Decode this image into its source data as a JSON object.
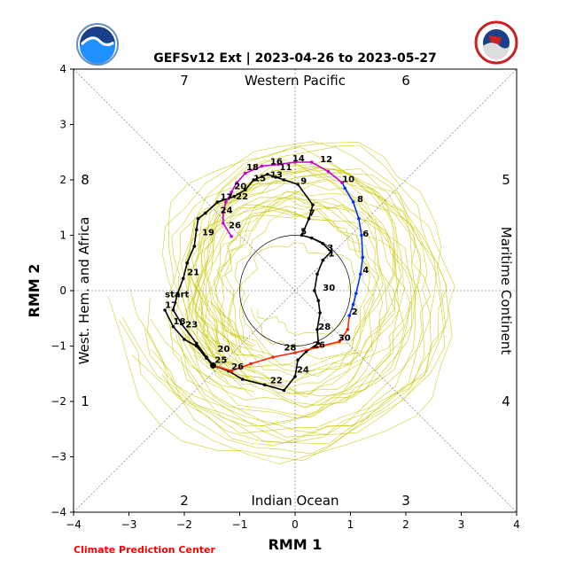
{
  "chart_data": {
    "type": "phase-diagram",
    "title": "GEFSv12 Ext | 2023-04-26 to 2023-05-27",
    "xlabel": "RMM 1",
    "ylabel": "RMM 2",
    "xlim": [
      -4,
      4
    ],
    "ylim": [
      -4,
      4
    ],
    "xticks": [
      -4,
      -3,
      -2,
      -1,
      0,
      1,
      2,
      3,
      4
    ],
    "yticks": [
      -4,
      -3,
      -2,
      -1,
      0,
      1,
      2,
      3,
      4
    ],
    "region_labels": {
      "top": "Western Pacific",
      "bottom": "Indian Ocean",
      "left": "West. Hem. and Africa",
      "right": "Maritime Continent"
    },
    "phase_numbers": [
      "1",
      "2",
      "3",
      "4",
      "5",
      "6",
      "7",
      "8"
    ],
    "credit": "Climate Prediction Center",
    "start_label": "start",
    "colors": {
      "observed": "#000000",
      "segment_red": "#ff2200",
      "segment_blue": "#0033ff",
      "segment_magenta": "#cc00cc",
      "ensemble": "#c8c800",
      "credit": "#ff0000"
    },
    "series": [
      {
        "name": "observed",
        "color": "#000000",
        "points": [
          [
            -2.35,
            -0.35
          ],
          [
            -2.2,
            -0.65
          ],
          [
            -2.0,
            -0.88
          ],
          [
            -1.78,
            -1.0
          ],
          [
            -1.6,
            -1.22
          ],
          [
            -1.48,
            -1.35
          ],
          [
            -1.2,
            -1.45
          ],
          [
            -0.95,
            -1.6
          ],
          [
            -0.55,
            -1.7
          ],
          [
            -0.2,
            -1.8
          ],
          [
            0.0,
            -1.55
          ],
          [
            0.05,
            -1.25
          ],
          [
            0.2,
            -1.1
          ],
          [
            0.42,
            -0.95
          ],
          [
            0.4,
            -0.7
          ],
          [
            0.45,
            -0.4
          ],
          [
            0.42,
            -0.18
          ],
          [
            0.35,
            0.0
          ],
          [
            0.4,
            0.3
          ],
          [
            0.5,
            0.55
          ],
          [
            0.65,
            0.7
          ],
          [
            0.5,
            0.85
          ],
          [
            0.3,
            0.95
          ],
          [
            0.12,
            1.0
          ],
          [
            0.25,
            1.3
          ],
          [
            0.32,
            1.55
          ],
          [
            0.05,
            1.92
          ],
          [
            -0.2,
            2.0
          ],
          [
            -0.35,
            2.05
          ],
          [
            -0.5,
            2.1
          ],
          [
            -0.75,
            2.0
          ],
          [
            -0.9,
            1.82
          ],
          [
            -1.1,
            1.7
          ],
          [
            -1.4,
            1.6
          ],
          [
            -1.62,
            1.4
          ],
          [
            -1.75,
            1.3
          ],
          [
            -1.78,
            1.1
          ],
          [
            -1.82,
            0.8
          ],
          [
            -1.95,
            0.5
          ],
          [
            -2.02,
            0.22
          ],
          [
            -2.12,
            -0.05
          ],
          [
            -2.2,
            -0.35
          ],
          [
            -2.05,
            -0.6
          ],
          [
            -1.78,
            -0.95
          ],
          [
            -1.6,
            -1.2
          ],
          [
            -1.48,
            -1.35
          ]
        ]
      },
      {
        "name": "forecast-red",
        "color": "#ff2200",
        "points": [
          [
            -1.48,
            -1.35
          ],
          [
            -1.15,
            -1.45
          ],
          [
            -0.8,
            -1.32
          ],
          [
            -0.4,
            -1.2
          ],
          [
            0.0,
            -1.12
          ],
          [
            0.4,
            -1.02
          ],
          [
            0.8,
            -0.92
          ],
          [
            0.95,
            -0.7
          ],
          [
            0.98,
            -0.45
          ]
        ]
      },
      {
        "name": "forecast-blue",
        "color": "#0033ff",
        "points": [
          [
            0.98,
            -0.45
          ],
          [
            1.05,
            -0.25
          ],
          [
            1.1,
            -0.05
          ],
          [
            1.18,
            0.3
          ],
          [
            1.22,
            0.6
          ],
          [
            1.2,
            1.0
          ],
          [
            1.15,
            1.3
          ],
          [
            1.05,
            1.6
          ],
          [
            0.9,
            1.85
          ],
          [
            0.85,
            1.95
          ]
        ]
      },
      {
        "name": "forecast-magenta",
        "color": "#cc00cc",
        "points": [
          [
            0.85,
            1.95
          ],
          [
            0.6,
            2.15
          ],
          [
            0.3,
            2.32
          ],
          [
            0.0,
            2.32
          ],
          [
            -0.3,
            2.28
          ],
          [
            -0.6,
            2.25
          ],
          [
            -0.9,
            2.12
          ],
          [
            -1.05,
            1.95
          ],
          [
            -1.15,
            1.78
          ],
          [
            -1.25,
            1.6
          ],
          [
            -1.3,
            1.42
          ],
          [
            -1.3,
            1.22
          ],
          [
            -1.15,
            0.98
          ]
        ]
      }
    ],
    "day_labels": [
      {
        "text": "start",
        "x": -2.35,
        "y": -0.12
      },
      {
        "text": "17",
        "x": -2.35,
        "y": -0.31
      },
      {
        "text": "18",
        "x": -2.2,
        "y": -0.61
      },
      {
        "text": "23",
        "x": -1.98,
        "y": -0.66
      },
      {
        "text": "20",
        "x": -1.4,
        "y": -1.1
      },
      {
        "text": "25",
        "x": -1.45,
        "y": -1.3
      },
      {
        "text": "26",
        "x": -1.15,
        "y": -1.42
      },
      {
        "text": "22",
        "x": -0.45,
        "y": -1.67
      },
      {
        "text": "24",
        "x": 0.03,
        "y": -1.48
      },
      {
        "text": "28",
        "x": -0.2,
        "y": -1.08
      },
      {
        "text": "26",
        "x": 0.32,
        "y": -1.03
      },
      {
        "text": "30",
        "x": 0.78,
        "y": -0.9
      },
      {
        "text": "28",
        "x": 0.42,
        "y": -0.7
      },
      {
        "text": "2",
        "x": 1.02,
        "y": -0.43
      },
      {
        "text": "30",
        "x": 0.5,
        "y": 0.0
      },
      {
        "text": "4",
        "x": 1.22,
        "y": 0.32
      },
      {
        "text": "1",
        "x": 0.6,
        "y": 0.62
      },
      {
        "text": "3",
        "x": 0.58,
        "y": 0.72
      },
      {
        "text": "5",
        "x": 0.1,
        "y": 1.02
      },
      {
        "text": "6",
        "x": 1.22,
        "y": 0.98
      },
      {
        "text": "7",
        "x": 0.25,
        "y": 1.35
      },
      {
        "text": "8",
        "x": 1.12,
        "y": 1.6
      },
      {
        "text": "9",
        "x": 0.1,
        "y": 1.93
      },
      {
        "text": "10",
        "x": 0.85,
        "y": 1.96
      },
      {
        "text": "12",
        "x": 0.45,
        "y": 2.32
      },
      {
        "text": "14",
        "x": -0.05,
        "y": 2.34
      },
      {
        "text": "16",
        "x": -0.45,
        "y": 2.28
      },
      {
        "text": "11",
        "x": -0.28,
        "y": 2.18
      },
      {
        "text": "18",
        "x": -0.88,
        "y": 2.18
      },
      {
        "text": "13",
        "x": -0.45,
        "y": 2.04
      },
      {
        "text": "15",
        "x": -0.75,
        "y": 1.98
      },
      {
        "text": "20",
        "x": -1.1,
        "y": 1.83
      },
      {
        "text": "17",
        "x": -1.35,
        "y": 1.64
      },
      {
        "text": "22",
        "x": -1.07,
        "y": 1.65
      },
      {
        "text": "24",
        "x": -1.35,
        "y": 1.4
      },
      {
        "text": "26",
        "x": -1.2,
        "y": 1.13
      },
      {
        "text": "19",
        "x": -1.68,
        "y": 1.0
      },
      {
        "text": "21",
        "x": -1.95,
        "y": 0.28
      }
    ]
  }
}
